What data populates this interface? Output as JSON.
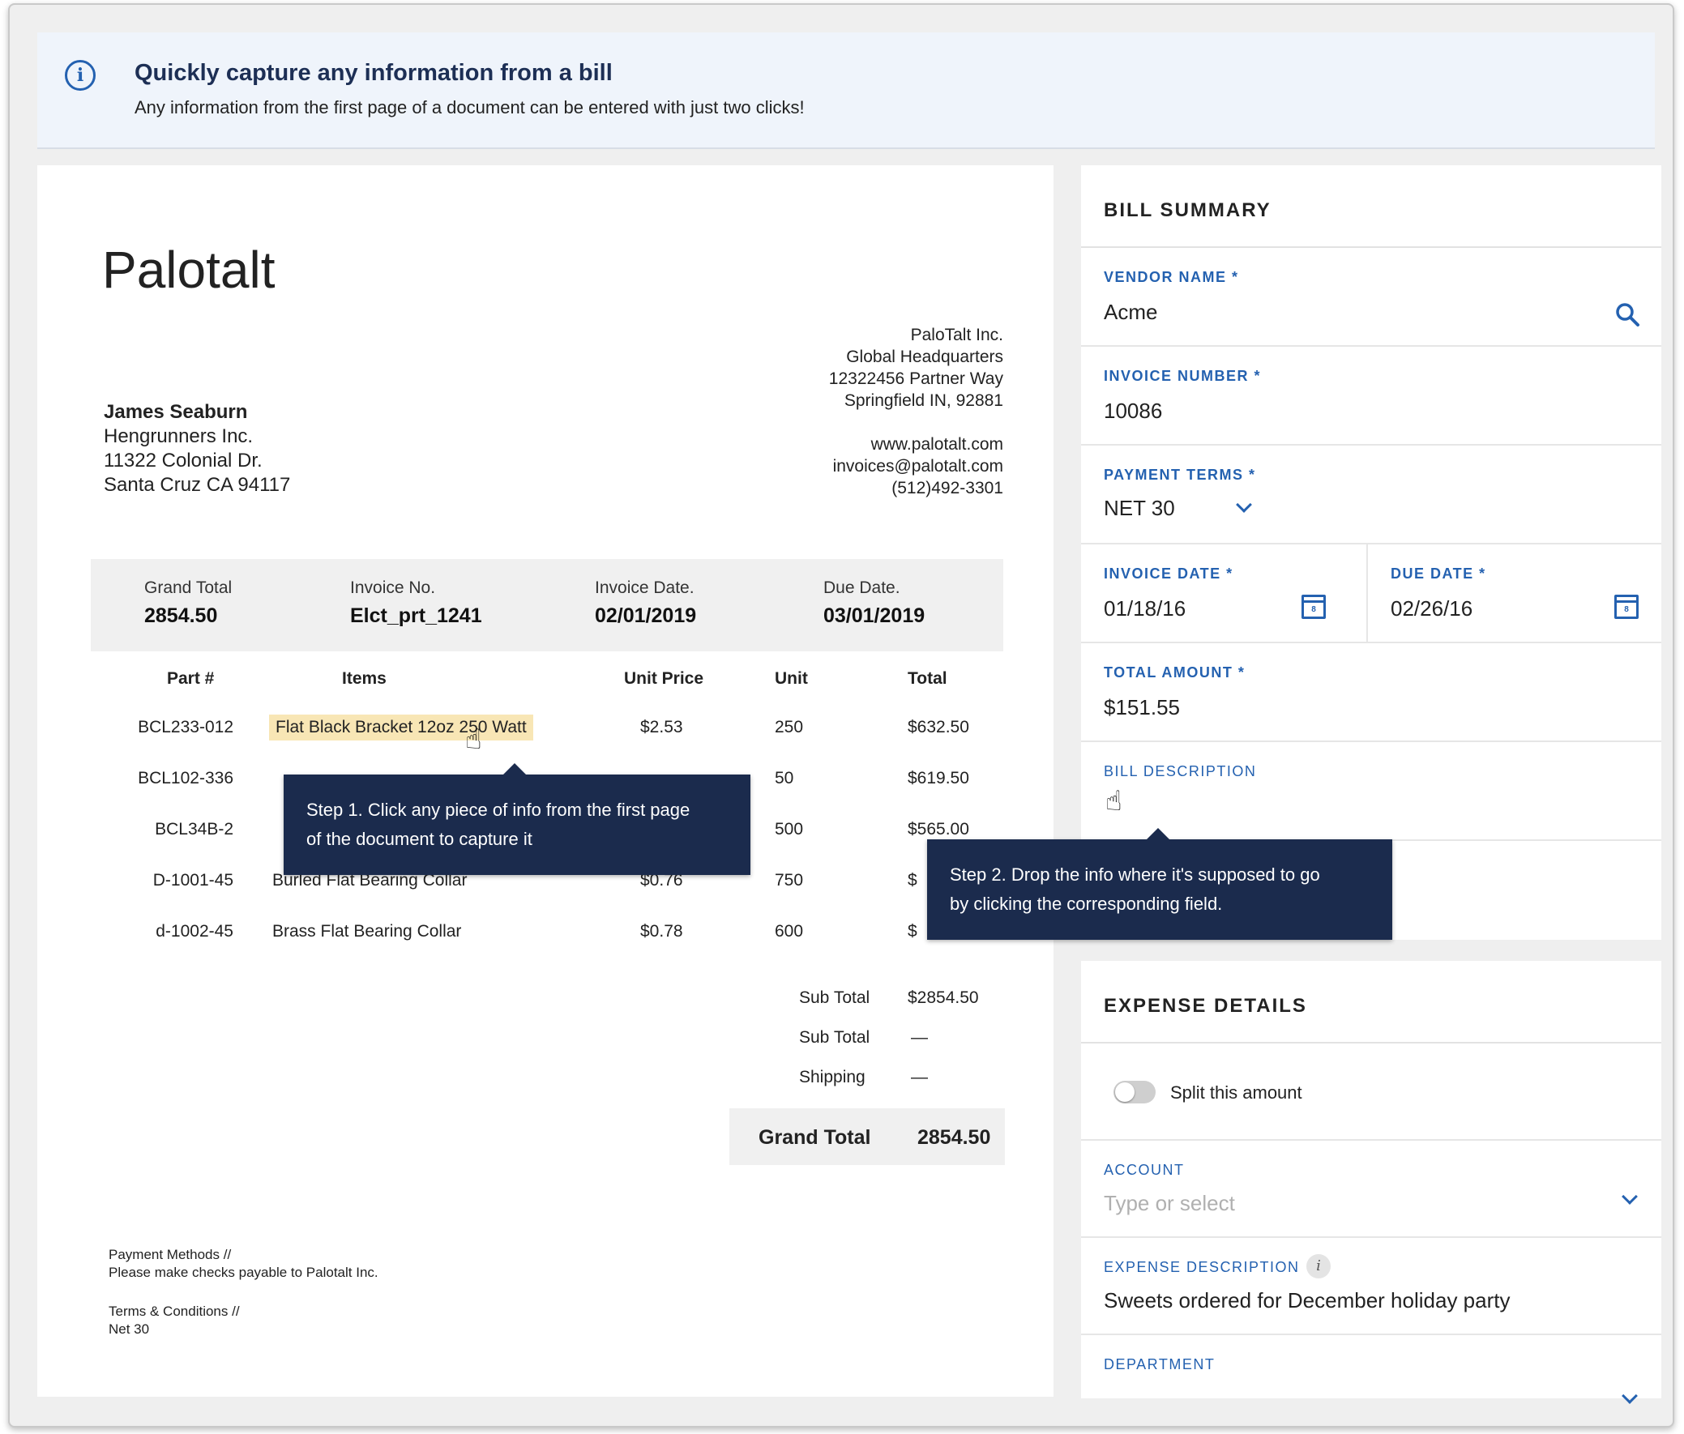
{
  "banner": {
    "title": "Quickly capture any information from a bill",
    "subtitle": "Any information from the first page of a document can be entered with just two clicks!",
    "icon": "info-icon"
  },
  "invoice": {
    "logo": "Palotalt",
    "company_address": [
      "PaloTalt Inc.",
      "Global Headquarters",
      "12322456 Partner Way",
      "Springfield IN, 92881"
    ],
    "company_contact": [
      "www.palotalt.com",
      "invoices@palotalt.com",
      "(512)492-3301"
    ],
    "bill_to": {
      "name": "James Seaburn",
      "lines": [
        "Hengrunners Inc.",
        "11322 Colonial Dr.",
        "Santa Cruz CA 94117"
      ]
    },
    "summary": {
      "grand_total_label": "Grand Total",
      "grand_total_value": "2854.50",
      "invoice_no_label": "Invoice No.",
      "invoice_no_value": "Elct_prt_1241",
      "invoice_date_label": "Invoice Date.",
      "invoice_date_value": "02/01/2019",
      "due_date_label": "Due Date.",
      "due_date_value": "03/01/2019"
    },
    "columns": [
      "Part #",
      "Items",
      "Unit Price",
      "Unit",
      "Total"
    ],
    "rows": [
      {
        "part": "BCL233-012",
        "item": "Flat Black Bracket 12oz 250 Watt",
        "price": "$2.53",
        "unit": "250",
        "total": "$632.50"
      },
      {
        "part": "BCL102-336",
        "item": "",
        "price": "",
        "unit": "50",
        "total": "$619.50"
      },
      {
        "part": "BCL34B-2",
        "item": "",
        "price": "",
        "unit": "500",
        "total": "$565.00"
      },
      {
        "part": "D-1001-45",
        "item": "Burled Flat Bearing Collar",
        "price": "$0.76",
        "unit": "750",
        "total": "$"
      },
      {
        "part": "d-1002-45",
        "item": "Brass Flat Bearing Collar",
        "price": "$0.78",
        "unit": "600",
        "total": "$"
      }
    ],
    "totals": [
      {
        "label": "Sub Total",
        "value": "$2854.50"
      },
      {
        "label": "Sub Total",
        "value": "—"
      },
      {
        "label": "Shipping",
        "value": "—"
      }
    ],
    "grand_total_label": "Grand Total",
    "grand_total_value": "2854.50",
    "payment_methods": [
      "Payment Methods //",
      "Please make checks payable to Palotalt Inc."
    ],
    "terms": [
      "Terms & Conditions //",
      "Net 30"
    ]
  },
  "tooltips": {
    "step1": [
      "Step 1.  Click any piece of info from the first page",
      "of the document to capture it"
    ],
    "step2": [
      "Step 2.  Drop the info where it's supposed to go",
      "by clicking the corresponding field."
    ]
  },
  "bill_summary": {
    "header": "BILL SUMMARY",
    "vendor_label": "VENDOR NAME *",
    "vendor_value": "Acme",
    "invoice_number_label": "INVOICE NUMBER *",
    "invoice_number_value": "10086",
    "payment_terms_label": "PAYMENT TERMS *",
    "payment_terms_value": "NET 30",
    "invoice_date_label": "INVOICE DATE *",
    "invoice_date_value": "01/18/16",
    "due_date_label": "DUE DATE *",
    "due_date_value": "02/26/16",
    "calendar_day": "8",
    "total_amount_label": "TOTAL AMOUNT *",
    "total_amount_value": "$151.55",
    "bill_description_label": "BILL DESCRIPTION"
  },
  "expense_details": {
    "header": "EXPENSE DETAILS",
    "split_label": "Split this amount",
    "split_on": false,
    "account_label": "ACCOUNT",
    "account_placeholder": "Type or select",
    "expense_description_label": "EXPENSE DESCRIPTION",
    "expense_description_value": "Sweets ordered for December holiday party",
    "department_label": "DEPARTMENT"
  },
  "colors": {
    "accent": "#2461b0",
    "tooltip_bg": "#1b2b4d",
    "highlight": "#f8e6b5",
    "banner_bg": "#eff4fb"
  }
}
